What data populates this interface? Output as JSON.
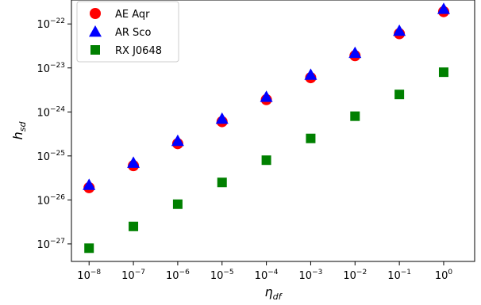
{
  "chart_data": {
    "type": "scatter",
    "xscale": "log",
    "yscale": "log",
    "xlim": [
      4e-09,
      5
    ],
    "ylim": [
      4e-28,
      3.5e-22
    ],
    "grid": false,
    "legend_position": "top-left",
    "xlabel": {
      "base": "η",
      "sub": "df"
    },
    "ylabel": {
      "base": "h",
      "sub": "sd"
    },
    "x_ticks": [
      {
        "value": 1e-08,
        "base": "10",
        "exp": "−8"
      },
      {
        "value": 1e-07,
        "base": "10",
        "exp": "−7"
      },
      {
        "value": 1e-06,
        "base": "10",
        "exp": "−6"
      },
      {
        "value": 1e-05,
        "base": "10",
        "exp": "−5"
      },
      {
        "value": 0.0001,
        "base": "10",
        "exp": "−4"
      },
      {
        "value": 0.001,
        "base": "10",
        "exp": "−3"
      },
      {
        "value": 0.01,
        "base": "10",
        "exp": "−2"
      },
      {
        "value": 0.1,
        "base": "10",
        "exp": "−1"
      },
      {
        "value": 1,
        "base": "10",
        "exp": "0"
      }
    ],
    "y_ticks": [
      {
        "value": 1e-27,
        "base": "10",
        "exp": "−27"
      },
      {
        "value": 1e-26,
        "base": "10",
        "exp": "−26"
      },
      {
        "value": 1e-25,
        "base": "10",
        "exp": "−25"
      },
      {
        "value": 1e-24,
        "base": "10",
        "exp": "−24"
      },
      {
        "value": 1e-23,
        "base": "10",
        "exp": "−23"
      },
      {
        "value": 1e-22,
        "base": "10",
        "exp": "−22"
      }
    ],
    "x": [
      1e-08,
      1e-07,
      1e-06,
      1e-05,
      0.0001,
      0.001,
      0.01,
      0.1,
      1
    ],
    "series": [
      {
        "name": "AE Aqr",
        "marker": "circle",
        "color": "#ff0000",
        "values": [
          1.9e-26,
          6e-26,
          1.9e-25,
          6e-25,
          1.9e-24,
          6e-24,
          1.9e-23,
          6e-23,
          1.9e-22
        ]
      },
      {
        "name": "AR Sco",
        "marker": "triangle",
        "color": "#0000ff",
        "values": [
          2.2e-26,
          7e-26,
          2.2e-25,
          7e-25,
          2.2e-24,
          7e-24,
          2.2e-23,
          7e-23,
          2.2e-22
        ]
      },
      {
        "name": "RX J0648",
        "marker": "square",
        "color": "#008000",
        "values": [
          8e-28,
          2.5e-27,
          8e-27,
          2.5e-26,
          8e-26,
          2.5e-25,
          8e-25,
          2.5e-24,
          8e-24
        ]
      }
    ]
  }
}
